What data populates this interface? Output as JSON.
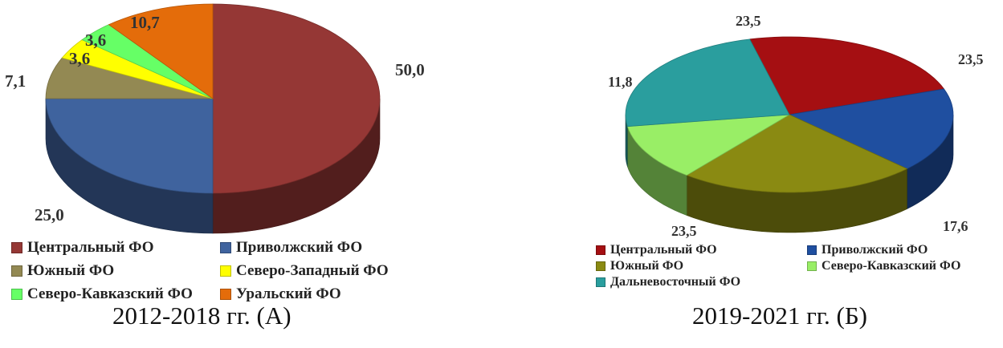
{
  "chart_data": [
    {
      "type": "pie",
      "caption": "2012-2018 гг. (А)",
      "categories": [
        "Центральный ФО",
        "Приволжский ФО",
        "Южный ФО",
        "Северо-Западный ФО",
        "Северо-Кавказский ФО",
        "Уральский ФО"
      ],
      "values": [
        50.0,
        25.0,
        7.1,
        3.6,
        3.6,
        10.7
      ],
      "data_labels": [
        "50,0",
        "25,0",
        "7,1",
        "3,6",
        "3,6",
        "10,7"
      ],
      "colors": [
        "#953735",
        "#3f639e",
        "#938953",
        "#ffff00",
        "#66ff66",
        "#e46c0a"
      ],
      "legend": [
        [
          "Центральный ФО",
          "Приволжский ФО"
        ],
        [
          "Южный ФО",
          "Северо-Западный ФО"
        ],
        [
          "Северо-Кавказский ФО",
          "Уральский ФО"
        ]
      ],
      "legend_position": "bottom"
    },
    {
      "type": "pie",
      "caption": "2019-2021 гг. (Б)",
      "categories": [
        "Центральный ФО",
        "Приволжский ФО",
        "Южный ФО",
        "Северо-Кавказский ФО",
        "Дальневосточный ФО"
      ],
      "values": [
        23.5,
        17.6,
        23.5,
        11.8,
        23.5
      ],
      "data_labels": [
        "23,5",
        "17,6",
        "23,5",
        "11,8",
        "23,5"
      ],
      "colors": [
        "#a50f12",
        "#1f4fa0",
        "#8a8a12",
        "#99ee66",
        "#2a9e9e"
      ],
      "legend": [
        [
          "Центральный ФО",
          "Приволжский ФО"
        ],
        [
          "Южный ФО",
          "Северо-Кавказский ФО"
        ],
        [
          "Дальневосточный ФО"
        ]
      ],
      "legend_position": "bottom"
    }
  ]
}
